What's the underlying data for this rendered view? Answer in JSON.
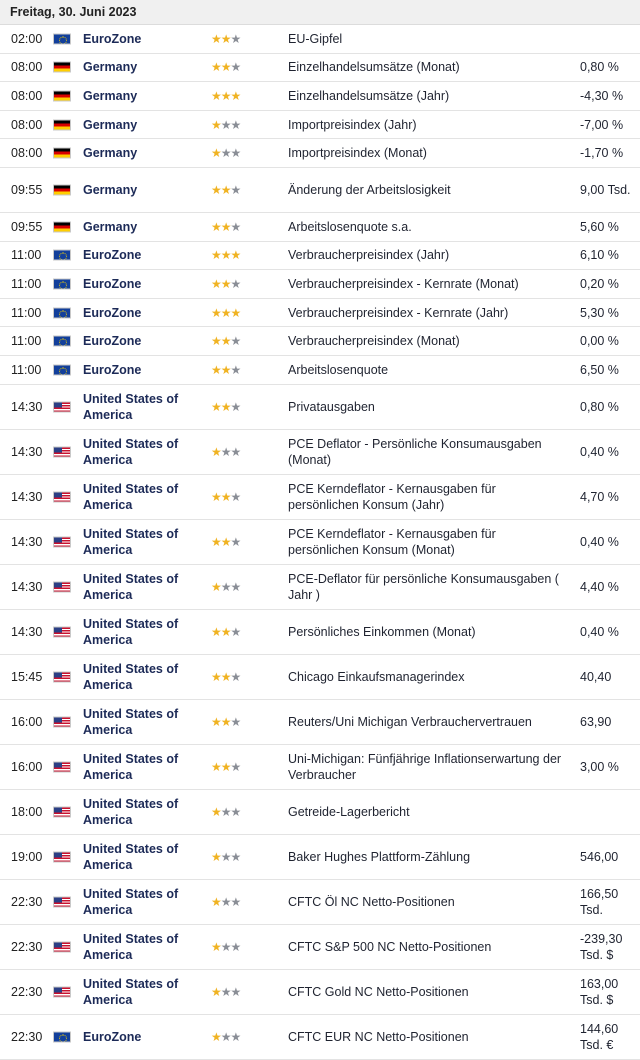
{
  "date_header": "Freitag, 30. Juni 2023",
  "colors": {
    "star_on": "#f0b323",
    "star_off": "#8a8e96",
    "country": "#1c2a57"
  },
  "events": [
    {
      "time": "02:00",
      "flag": "eu",
      "country": "EuroZone",
      "stars": 2,
      "event": "EU-Gipfel",
      "value": ""
    },
    {
      "time": "08:00",
      "flag": "de",
      "country": "Germany",
      "stars": 2,
      "event": "Einzelhandelsumsätze (Monat)",
      "value": "0,80 %"
    },
    {
      "time": "08:00",
      "flag": "de",
      "country": "Germany",
      "stars": 3,
      "event": "Einzelhandelsumsätze (Jahr)",
      "value": "-4,30 %"
    },
    {
      "time": "08:00",
      "flag": "de",
      "country": "Germany",
      "stars": 1,
      "event": "Importpreisindex (Jahr)",
      "value": "-7,00 %"
    },
    {
      "time": "08:00",
      "flag": "de",
      "country": "Germany",
      "stars": 1,
      "event": "Importpreisindex (Monat)",
      "value": "-1,70 %"
    },
    {
      "time": "09:55",
      "flag": "de",
      "country": "Germany",
      "stars": 2,
      "event": "Änderung der Arbeitslosigkeit",
      "value": "9,00 Tsd."
    },
    {
      "time": "09:55",
      "flag": "de",
      "country": "Germany",
      "stars": 2,
      "event": "Arbeitslosenquote s.a.",
      "value": "5,60 %"
    },
    {
      "time": "11:00",
      "flag": "eu",
      "country": "EuroZone",
      "stars": 3,
      "event": "Verbraucherpreisindex (Jahr)",
      "value": "6,10 %"
    },
    {
      "time": "11:00",
      "flag": "eu",
      "country": "EuroZone",
      "stars": 2,
      "event": "Verbraucherpreisindex - Kernrate (Monat)",
      "value": "0,20 %"
    },
    {
      "time": "11:00",
      "flag": "eu",
      "country": "EuroZone",
      "stars": 3,
      "event": "Verbraucherpreisindex - Kernrate (Jahr)",
      "value": "5,30 %"
    },
    {
      "time": "11:00",
      "flag": "eu",
      "country": "EuroZone",
      "stars": 2,
      "event": "Verbraucherpreisindex (Monat)",
      "value": "0,00 %"
    },
    {
      "time": "11:00",
      "flag": "eu",
      "country": "EuroZone",
      "stars": 2,
      "event": "Arbeitslosenquote",
      "value": "6,50 %"
    },
    {
      "time": "14:30",
      "flag": "us",
      "country": "United States of America",
      "stars": 2,
      "event": "Privatausgaben",
      "value": "0,80 %"
    },
    {
      "time": "14:30",
      "flag": "us",
      "country": "United States of America",
      "stars": 1,
      "event": "PCE Deflator - Persönliche Konsumausgaben (Monat)",
      "value": "0,40 %"
    },
    {
      "time": "14:30",
      "flag": "us",
      "country": "United States of America",
      "stars": 2,
      "event": "PCE Kerndeflator - Kernausgaben für persönlichen Konsum (Jahr)",
      "value": "4,70 %"
    },
    {
      "time": "14:30",
      "flag": "us",
      "country": "United States of America",
      "stars": 2,
      "event": "PCE Kerndeflator - Kernausgaben für persönlichen Konsum (Monat)",
      "value": "0,40 %"
    },
    {
      "time": "14:30",
      "flag": "us",
      "country": "United States of America",
      "stars": 1,
      "event": "PCE-Deflator für persönliche Konsumausgaben ( Jahr )",
      "value": "4,40 %"
    },
    {
      "time": "14:30",
      "flag": "us",
      "country": "United States of America",
      "stars": 2,
      "event": "Persönliches Einkommen (Monat)",
      "value": "0,40 %"
    },
    {
      "time": "15:45",
      "flag": "us",
      "country": "United States of America",
      "stars": 2,
      "event": "Chicago Einkaufsmanagerindex",
      "value": "40,40"
    },
    {
      "time": "16:00",
      "flag": "us",
      "country": "United States of America",
      "stars": 2,
      "event": "Reuters/Uni Michigan Verbrauchervertrauen",
      "value": "63,90"
    },
    {
      "time": "16:00",
      "flag": "us",
      "country": "United States of America",
      "stars": 2,
      "event": "Uni-Michigan: Fünfjährige Inflationserwartung der Verbraucher",
      "value": "3,00 %"
    },
    {
      "time": "18:00",
      "flag": "us",
      "country": "United States of America",
      "stars": 1,
      "event": "Getreide-Lagerbericht",
      "value": ""
    },
    {
      "time": "19:00",
      "flag": "us",
      "country": "United States of America",
      "stars": 1,
      "event": "Baker Hughes Plattform-Zählung",
      "value": "546,00"
    },
    {
      "time": "22:30",
      "flag": "us",
      "country": "United States of America",
      "stars": 1,
      "event": "CFTC Öl NC Netto-Positionen",
      "value": "166,50 Tsd."
    },
    {
      "time": "22:30",
      "flag": "us",
      "country": "United States of America",
      "stars": 1,
      "event": "CFTC S&P 500 NC Netto-Positionen",
      "value": "-239,30 Tsd. $"
    },
    {
      "time": "22:30",
      "flag": "us",
      "country": "United States of America",
      "stars": 1,
      "event": "CFTC Gold NC Netto-Positionen",
      "value": "163,00 Tsd. $"
    },
    {
      "time": "22:30",
      "flag": "eu",
      "country": "EuroZone",
      "stars": 1,
      "event": "CFTC EUR NC Netto-Positionen",
      "value": "144,60 Tsd. €"
    }
  ]
}
